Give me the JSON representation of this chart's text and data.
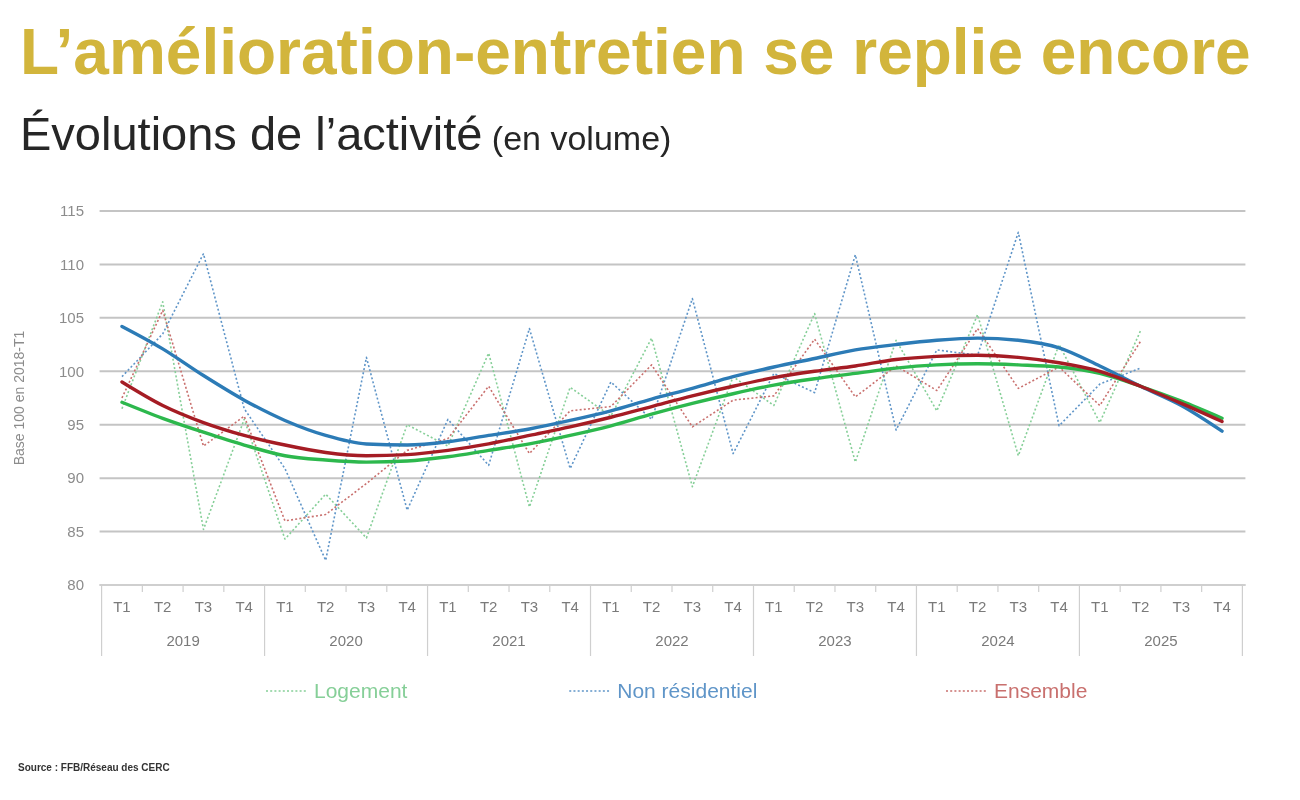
{
  "chart_data": {
    "type": "line",
    "title": "L’amélioration-entretien se replie encore",
    "subtitle": "Évolutions de l’activité (en volume)",
    "ylabel": "Base 100 en 2018-T1",
    "categories": [
      "T1",
      "T2",
      "T3",
      "T4",
      "T1",
      "T2",
      "T3",
      "T4",
      "T1",
      "T2",
      "T3",
      "T4",
      "T1",
      "T2",
      "T3",
      "T4",
      "T1",
      "T2",
      "T3",
      "T4",
      "T1",
      "T2",
      "T3",
      "T4",
      "T1",
      "T2",
      "T3",
      "T4"
    ],
    "series": [
      {
        "name": "Logement",
        "color": "#86cf98",
        "line_style": "dotted",
        "values": [
          96.5,
          106.5,
          85.2,
          95.5,
          84.3,
          88.5,
          84.4,
          95.0,
          93.0,
          101.7,
          87.3,
          98.5,
          95.8,
          103.1,
          89.2,
          99.5,
          96.8,
          105.4,
          91.5,
          102.9,
          96.3,
          105.3,
          92.1,
          102.5,
          95.2,
          103.8,
          null,
          null
        ]
      },
      {
        "name": "Non résidentiel",
        "color": "#5f95c8",
        "line_style": "dotted",
        "values": [
          99.5,
          103.5,
          111.0,
          96.5,
          90.9,
          82.3,
          101.3,
          87.0,
          95.5,
          91.2,
          104.0,
          90.9,
          99.0,
          95.5,
          106.8,
          92.3,
          99.8,
          98.0,
          110.9,
          94.5,
          102.0,
          101.5,
          113.0,
          94.9,
          98.8,
          100.3,
          null,
          null
        ]
      },
      {
        "name": "Ensemble",
        "color": "#c9706e",
        "line_style": "dotted",
        "values": [
          97.5,
          105.7,
          93.0,
          95.8,
          86.0,
          86.6,
          89.5,
          92.6,
          93.7,
          98.6,
          92.3,
          96.3,
          96.7,
          100.6,
          94.8,
          97.3,
          97.7,
          103.0,
          97.6,
          100.5,
          98.2,
          104.0,
          98.4,
          100.4,
          96.8,
          102.8,
          null,
          null
        ]
      },
      {
        "color": "#2c7bb6",
        "line_style": "solid",
        "values": [
          104.2,
          102.1,
          99.6,
          97.3,
          95.4,
          94.0,
          93.2,
          93.1,
          93.4,
          94.0,
          94.6,
          95.4,
          96.3,
          97.4,
          98.4,
          99.5,
          100.4,
          101.2,
          102.0,
          102.5,
          102.9,
          103.1,
          102.9,
          102.2,
          100.5,
          98.6,
          96.8,
          94.4
        ]
      },
      {
        "color": "#2db84d",
        "line_style": "solid",
        "values": [
          97.1,
          95.6,
          94.3,
          93.1,
          92.1,
          91.7,
          91.5,
          91.6,
          92.0,
          92.6,
          93.2,
          94.0,
          94.9,
          96.0,
          97.0,
          97.9,
          98.7,
          99.3,
          99.8,
          100.3,
          100.6,
          100.7,
          100.6,
          100.4,
          99.8,
          98.6,
          97.2,
          95.6
        ]
      },
      {
        "color": "#a51c24",
        "line_style": "solid",
        "values": [
          99.0,
          96.8,
          95.2,
          94.0,
          93.1,
          92.4,
          92.1,
          92.2,
          92.6,
          93.2,
          94.0,
          94.8,
          95.7,
          96.7,
          97.7,
          98.6,
          99.4,
          100.0,
          100.5,
          101.1,
          101.4,
          101.5,
          101.3,
          100.8,
          100.0,
          98.6,
          97.0,
          95.3
        ]
      }
    ],
    "ylim": [
      80,
      115
    ],
    "yticks": [
      80,
      85,
      90,
      95,
      100,
      105,
      110,
      115
    ],
    "grid": "y",
    "legend": "bottom",
    "annotations": [
      "2019",
      "2020",
      "2021",
      "2022",
      "2023",
      "2024",
      "2025",
      "Source : FFB/Réseau des CERC"
    ]
  }
}
